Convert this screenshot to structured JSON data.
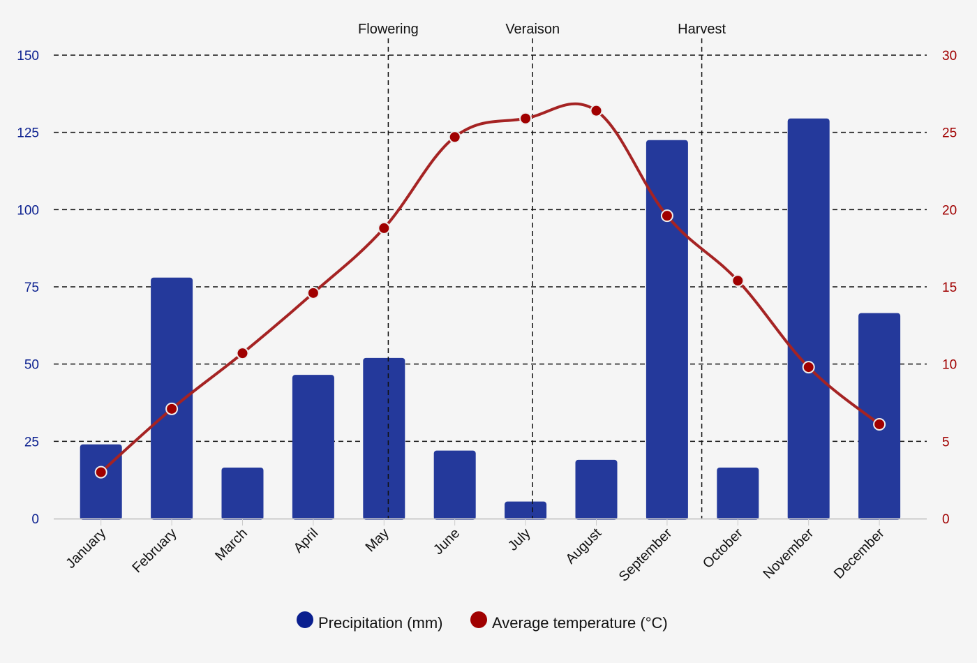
{
  "chart_data": {
    "type": "bar+line",
    "title": "",
    "categories": [
      "January",
      "February",
      "March",
      "April",
      "May",
      "June",
      "July",
      "August",
      "September",
      "October",
      "November",
      "December"
    ],
    "series": [
      {
        "name": "Precipitation (mm)",
        "type": "bar",
        "axis": "left",
        "color": "#24399b",
        "legend_color": "#0a1f8f",
        "values": [
          24,
          78,
          16.5,
          46.5,
          52,
          22,
          5.5,
          19,
          122.5,
          16.5,
          129.5,
          66.5
        ]
      },
      {
        "name": "Average temperature (°C)",
        "type": "line",
        "axis": "right",
        "color": "#a52323",
        "marker_color": "#a00000",
        "values": [
          3.0,
          7.1,
          10.7,
          14.6,
          18.8,
          24.7,
          25.9,
          26.4,
          19.6,
          15.4,
          9.8,
          6.1
        ]
      }
    ],
    "y_left": {
      "label": "",
      "range": [
        0,
        150
      ],
      "ticks": [
        "0",
        "25",
        "50",
        "75",
        "100",
        "125",
        "150"
      ],
      "color": "#0a1f8f"
    },
    "y_right": {
      "label": "",
      "range": [
        0,
        30
      ],
      "ticks": [
        "0",
        "5",
        "10",
        "15",
        "20",
        "25",
        "30"
      ],
      "color": "#a00000"
    },
    "grid": true,
    "plot_lines": [
      {
        "label": "Flowering",
        "value": 4.06
      },
      {
        "label": "Veraison",
        "value": 6.1
      },
      {
        "label": "Harvest",
        "value": 8.49
      }
    ],
    "legend": {
      "placement": "bottom-center",
      "items": [
        "Precipitation (mm)",
        "Average temperature (°C)"
      ]
    }
  }
}
